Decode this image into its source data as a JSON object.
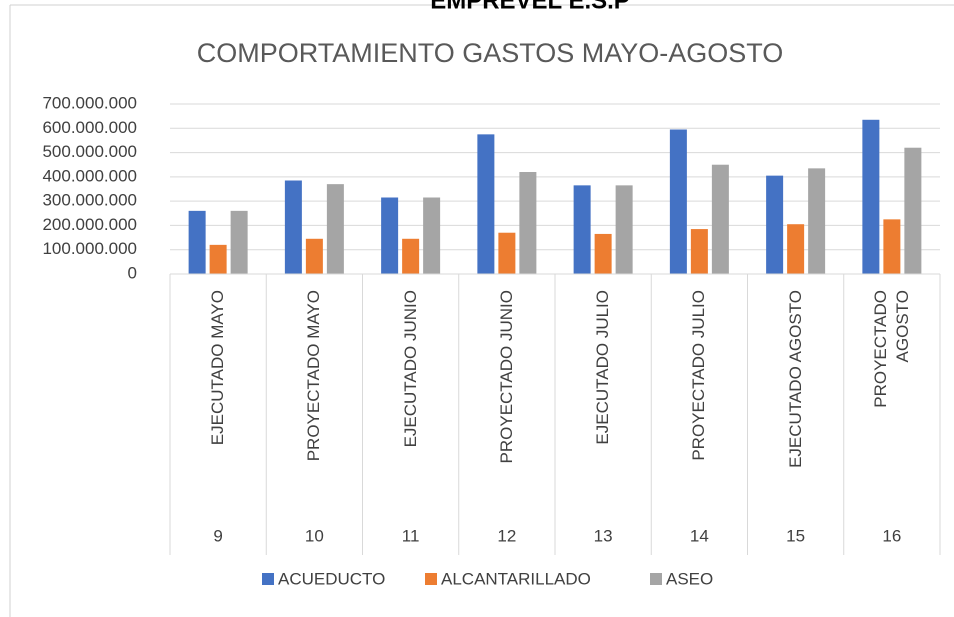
{
  "header": {
    "text": "EMPREVEL E.S.P"
  },
  "chart_data": {
    "type": "bar",
    "title": "COMPORTAMIENTO GASTOS MAYO-AGOSTO",
    "categories": [
      "EJECUTADO MAYO",
      "PROYECTADO MAYO",
      "EJECUTADO JUNIO",
      "PROYECTADO JUNIO",
      "EJECUTADO JULIO",
      "PROYECTADO JULIO",
      "EJECUTADO AGOSTO",
      "PROYECTADO AGOSTO"
    ],
    "category_numbers": [
      9,
      10,
      11,
      12,
      13,
      14,
      15,
      16
    ],
    "series": [
      {
        "name": "ACUEDUCTO",
        "color": "#4472c4",
        "values": [
          260000000,
          385000000,
          315000000,
          575000000,
          365000000,
          595000000,
          405000000,
          635000000
        ]
      },
      {
        "name": "ALCANTARILLADO",
        "color": "#ed7d31",
        "values": [
          120000000,
          145000000,
          145000000,
          170000000,
          165000000,
          185000000,
          205000000,
          225000000
        ]
      },
      {
        "name": "ASEO",
        "color": "#a5a5a5",
        "values": [
          260000000,
          370000000,
          315000000,
          420000000,
          365000000,
          450000000,
          435000000,
          520000000
        ]
      }
    ],
    "ylim": [
      0,
      700000000
    ],
    "yticks": [
      0,
      {
        "value": 100000000,
        "label": "100.000.000"
      },
      {
        "value": 200000000,
        "label": "200.000.000"
      },
      {
        "value": 300000000,
        "label": "300.000.000"
      },
      {
        "value": 400000000,
        "label": "400.000.000"
      },
      {
        "value": 500000000,
        "label": "500.000.000"
      },
      {
        "value": 600000000,
        "label": "600.000.000"
      },
      {
        "value": 700000000,
        "label": "700.000.000"
      }
    ],
    "grid": true,
    "legend": "bottom"
  }
}
